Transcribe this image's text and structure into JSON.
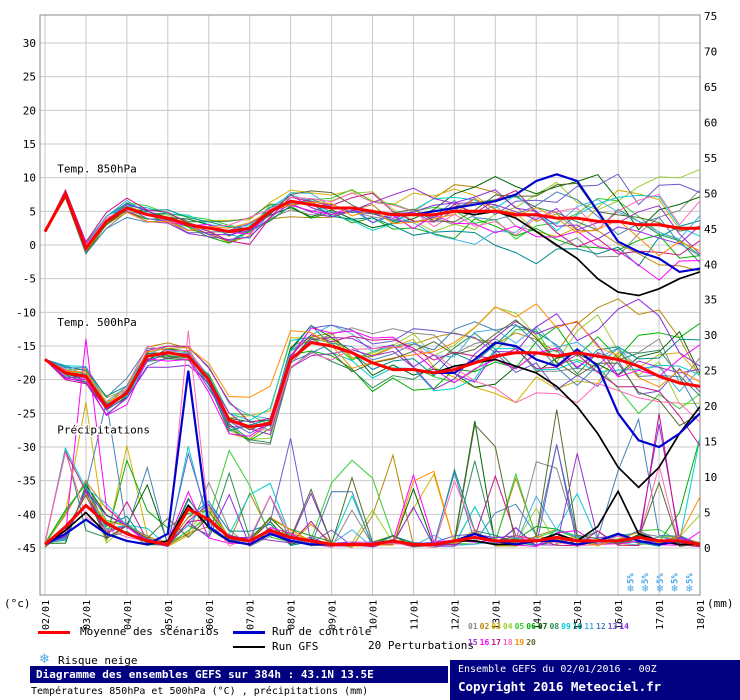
{
  "chart_data": {
    "type": "line",
    "title": "Diagramme des ensembles GEFS sur 384h : 43.1N 13.5E",
    "x_labels": [
      "02/01",
      "03/01",
      "04/01",
      "05/01",
      "06/01",
      "07/01",
      "08/01",
      "09/01",
      "10/01",
      "11/01",
      "12/01",
      "13/01",
      "14/01",
      "15/01",
      "16/01",
      "17/01",
      "18/01"
    ],
    "x_step_hours": 12,
    "ylim_left": [
      -45,
      30
    ],
    "ylim_right": [
      0,
      75
    ],
    "ytick_step": 5,
    "ylabel_left": "(°c)",
    "ylabel_right": "(mm)",
    "grid": true,
    "panels": [
      {
        "name": "temp-850",
        "axis": "temp",
        "series": [
          {
            "role": "mean",
            "name": "Moyenne des scénarios",
            "color": "#ff0000",
            "width": 3,
            "values": [
              2,
              7.5,
              -0.5,
              3.5,
              5.5,
              4.5,
              4,
              3,
              2.5,
              2,
              2.5,
              5,
              6.5,
              6,
              5.5,
              5.5,
              5,
              4.5,
              4.5,
              4.5,
              5,
              5,
              5,
              4.5,
              4.5,
              4,
              4,
              3.5,
              3.5,
              3,
              3,
              2.5,
              2.5
            ]
          },
          {
            "role": "control",
            "name": "Run de contrôle",
            "color": "#0000cc",
            "width": 2.2,
            "values": [
              2,
              7.5,
              -0.5,
              3.5,
              5.5,
              4.5,
              4,
              3,
              2.5,
              2,
              2.5,
              5,
              6.5,
              6,
              5.5,
              5.5,
              5,
              4.5,
              4.5,
              5,
              5.5,
              6,
              6.5,
              7.5,
              9.5,
              10.5,
              9.5,
              5,
              0.5,
              -1,
              -2,
              -4,
              -3.5
            ]
          },
          {
            "role": "gfs",
            "name": "Run GFS",
            "color": "#000000",
            "width": 1.7,
            "values": [
              2,
              7.5,
              -0.5,
              3.5,
              5.5,
              4.5,
              4,
              3,
              2.5,
              2,
              2.5,
              5,
              6.5,
              6,
              5.5,
              5.5,
              5,
              4.5,
              4.5,
              4.5,
              5,
              4.5,
              5,
              4,
              2,
              0,
              -2,
              -5,
              -7,
              -7.5,
              -6.5,
              -5,
              -4
            ]
          }
        ]
      },
      {
        "name": "temp-500",
        "axis": "temp",
        "series": [
          {
            "role": "mean",
            "name": "Moyenne des scénarios",
            "color": "#ff0000",
            "width": 3,
            "values": [
              -17,
              -19,
              -19.5,
              -24,
              -22,
              -16.5,
              -16,
              -16.5,
              -20,
              -26,
              -27,
              -26.5,
              -17,
              -14.5,
              -15,
              -16,
              -17.5,
              -18.5,
              -18.5,
              -19,
              -18.5,
              -17.5,
              -16.5,
              -16,
              -16,
              -16.5,
              -16,
              -16.5,
              -17,
              -18,
              -19.5,
              -20.5,
              -21
            ]
          },
          {
            "role": "control",
            "name": "Run de contrôle",
            "color": "#0000cc",
            "width": 2.2,
            "values": [
              -17,
              -19,
              -19.5,
              -24,
              -22,
              -16.5,
              -16,
              -16.5,
              -20,
              -26,
              -27,
              -26.5,
              -17,
              -14.5,
              -15,
              -16,
              -17.5,
              -18.5,
              -18.5,
              -19,
              -19,
              -17,
              -14.5,
              -15,
              -17,
              -18,
              -15.5,
              -18,
              -25,
              -29,
              -30,
              -28,
              -25
            ]
          },
          {
            "role": "gfs",
            "name": "Run GFS",
            "color": "#000000",
            "width": 1.7,
            "values": [
              -17,
              -19,
              -19.5,
              -24,
              -22,
              -16.5,
              -16,
              -16.5,
              -20,
              -26,
              -27,
              -26.5,
              -17,
              -14.5,
              -15,
              -16,
              -17.5,
              -18.5,
              -18.5,
              -19,
              -18,
              -17.5,
              -17,
              -18,
              -19,
              -21,
              -24,
              -28,
              -33,
              -36,
              -33,
              -28,
              -24
            ]
          }
        ]
      },
      {
        "name": "precipitation",
        "axis": "mm",
        "series": [
          {
            "role": "mean",
            "name": "Moyenne des scénarios",
            "color": "#ff0000",
            "width": 3,
            "values": [
              0.5,
              3,
              6,
              3.5,
              2,
              1,
              0.5,
              5.5,
              4,
              1.5,
              1,
              2.5,
              1.5,
              1,
              0.5,
              0.5,
              0.5,
              1,
              0.5,
              0.5,
              1,
              1.5,
              1,
              1,
              1,
              1.5,
              1,
              1,
              1,
              1.5,
              1,
              1,
              0.5
            ]
          },
          {
            "role": "control",
            "name": "Run de contrôle",
            "color": "#0000cc",
            "width": 2.2,
            "values": [
              0.5,
              2,
              4,
              2,
              1,
              0.5,
              2,
              25,
              3,
              1,
              0.5,
              2,
              1,
              0.5,
              0.5,
              0.5,
              0.5,
              1,
              0.5,
              0.5,
              1,
              2,
              1,
              0.5,
              1,
              1,
              0.5,
              1,
              2,
              1,
              0.5,
              1,
              0.5
            ]
          },
          {
            "role": "gfs",
            "name": "Run GFS",
            "color": "#000000",
            "width": 1.7,
            "values": [
              0.5,
              2.5,
              5,
              2,
              1,
              0.5,
              1,
              6,
              3,
              1,
              0.5,
              2,
              1,
              0.5,
              0.5,
              0.5,
              0.5,
              1,
              0.5,
              0.5,
              1,
              1,
              0.5,
              0.5,
              1,
              2,
              1,
              3,
              8,
              2,
              1,
              0.5,
              0.5
            ]
          }
        ]
      }
    ],
    "annotations": [
      {
        "label": "Temp. 850hPa",
        "day": 0.3,
        "temp": 10.8
      },
      {
        "label": "Temp. 500hPa",
        "day": 0.3,
        "temp": -12
      },
      {
        "label": "Précipitations",
        "day": 0.3,
        "temp": -28
      }
    ],
    "snow_risk": {
      "icon": "❄",
      "color": "#4aa8e8",
      "days": [
        14.3,
        14.66,
        15.02,
        15.38,
        15.74
      ],
      "labels": [
        "5%",
        "5%",
        "5%",
        "5%",
        "5%"
      ]
    },
    "perturbations": {
      "count": 20,
      "colors": [
        "#888888",
        "#b8860b",
        "#d2b100",
        "#9acd32",
        "#32cd32",
        "#00b000",
        "#006400",
        "#2e8b57",
        "#00ced1",
        "#008b8b",
        "#45b0e6",
        "#4682b4",
        "#6a5acd",
        "#8a2be2",
        "#9932cc",
        "#ff00ff",
        "#c71585",
        "#ff69b4",
        "#ff8c00",
        "#556b2f"
      ]
    }
  },
  "legend": {
    "mean": {
      "label": "Moyenne des scénarios",
      "color": "#ff0000"
    },
    "control": {
      "label": "Run de contrôle",
      "color": "#0000cc"
    },
    "gfs": {
      "label": "Run GFS",
      "color": "#000000"
    },
    "perturbations_label": "20 Perturbations",
    "member_labels": [
      "01",
      "02",
      "03",
      "04",
      "05",
      "06",
      "07",
      "08",
      "09",
      "10",
      "11",
      "12",
      "13",
      "14",
      "15",
      "16",
      "17",
      "18",
      "19",
      "20"
    ],
    "snow": {
      "label": "Risque neige",
      "icon": "❄",
      "color": "#4aa8e8"
    }
  },
  "footer": {
    "title": "Diagramme des ensembles GEFS sur 384h : 43.1N 13.5E",
    "subtitle": "Températures 850hPa et 500hPa (°C) , précipitations (mm)",
    "run_info": "Ensemble GEFS du 02/01/2016 - 00Z",
    "copyright": "Copyright 2016 Meteociel.fr",
    "bar_color": "#000080"
  }
}
